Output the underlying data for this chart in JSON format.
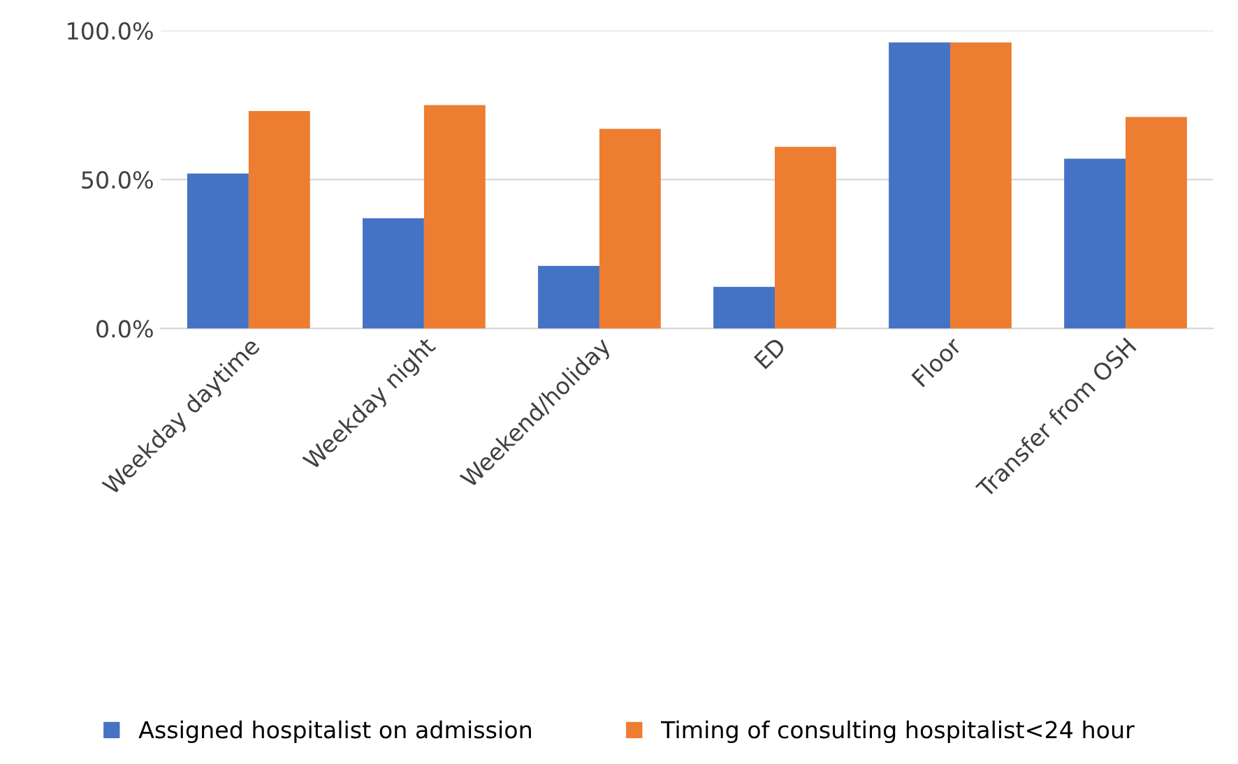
{
  "chart_data": {
    "type": "bar",
    "categories": [
      "Weekday daytime",
      "Weekday night",
      "Weekend/holiday",
      "ED",
      "Floor",
      "Transfer from OSH"
    ],
    "series": [
      {
        "name": "Assigned hospitalist on admission",
        "color": "#4472c4",
        "values": [
          52,
          37,
          21,
          14,
          96,
          57
        ]
      },
      {
        "name": "Timing of consulting hospitalist<24 hour",
        "color": "#ed7d31",
        "values": [
          73,
          75,
          67,
          61,
          96,
          71
        ]
      }
    ],
    "ylim": [
      0,
      100
    ],
    "yticks": [
      {
        "value": 0,
        "label": "0.0%"
      },
      {
        "value": 50,
        "label": "50.0%"
      },
      {
        "value": 100,
        "label": "100.0%"
      }
    ],
    "grid": "y",
    "legend": "bottom"
  }
}
